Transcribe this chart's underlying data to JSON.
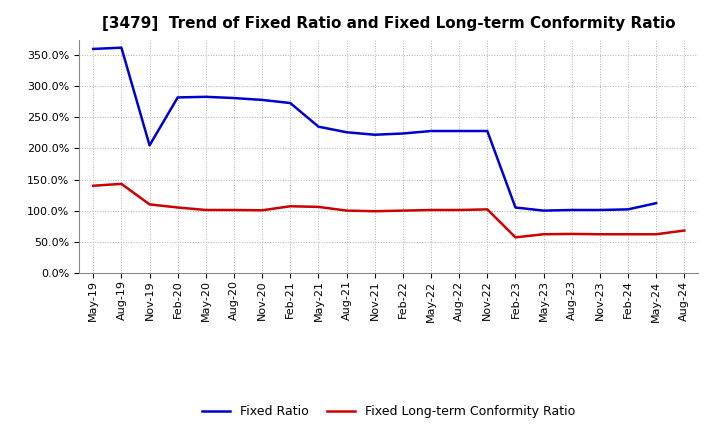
{
  "title": "[3479]  Trend of Fixed Ratio and Fixed Long-term Conformity Ratio",
  "x_labels": [
    "May-19",
    "Aug-19",
    "Nov-19",
    "Feb-20",
    "May-20",
    "Aug-20",
    "Nov-20",
    "Feb-21",
    "May-21",
    "Aug-21",
    "Nov-21",
    "Feb-22",
    "May-22",
    "Aug-22",
    "Nov-22",
    "Feb-23",
    "May-23",
    "Aug-23",
    "Nov-23",
    "Feb-24",
    "May-24",
    "Aug-24"
  ],
  "fixed_ratio": [
    360.0,
    362.0,
    205.0,
    282.0,
    283.0,
    281.0,
    278.0,
    273.0,
    235.0,
    226.0,
    222.0,
    224.0,
    228.0,
    228.0,
    228.0,
    105.0,
    100.0,
    101.0,
    101.0,
    102.0,
    112.0,
    null
  ],
  "fixed_lt_ratio": [
    140.0,
    143.0,
    110.0,
    105.0,
    101.0,
    101.0,
    100.5,
    107.0,
    106.0,
    100.0,
    99.0,
    100.0,
    101.0,
    101.0,
    102.0,
    57.0,
    62.0,
    62.5,
    62.0,
    62.0,
    62.0,
    68.0
  ],
  "ylim": [
    0,
    375
  ],
  "yticks": [
    0,
    50,
    100,
    150,
    200,
    250,
    300,
    350
  ],
  "blue_color": "#0000cc",
  "red_color": "#cc0000",
  "background_color": "#ffffff",
  "grid_color": "#b0b0b0",
  "legend_fixed_ratio": "Fixed Ratio",
  "legend_fixed_lt_ratio": "Fixed Long-term Conformity Ratio",
  "title_fontsize": 11,
  "tick_fontsize": 8,
  "legend_fontsize": 9
}
